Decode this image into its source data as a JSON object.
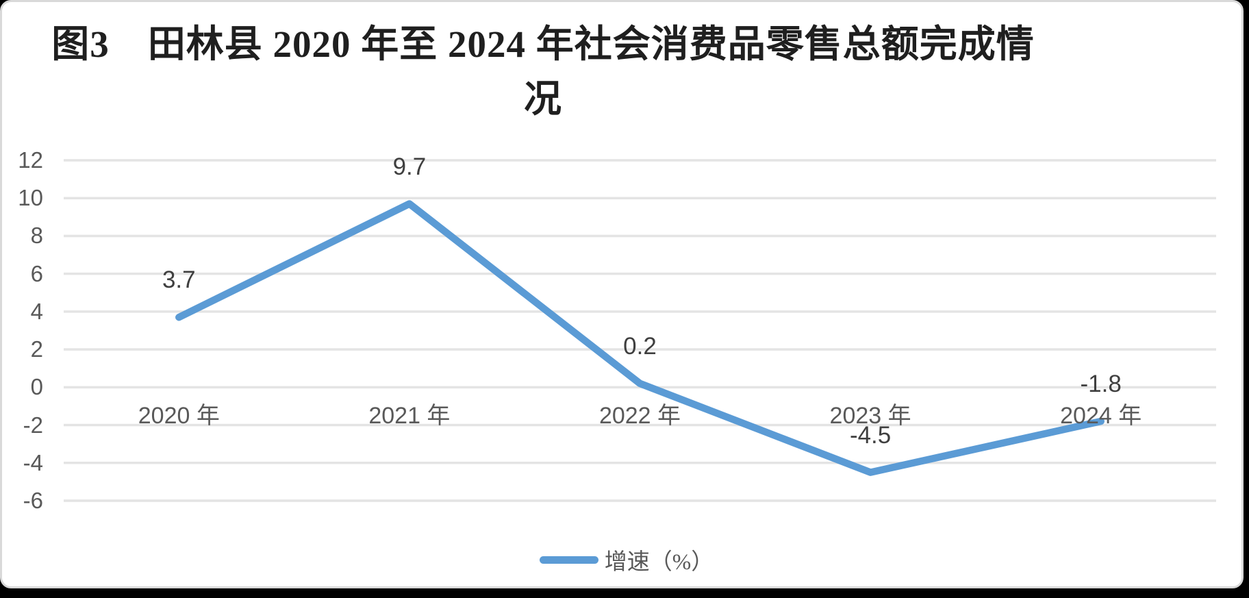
{
  "title": {
    "line1": "图3　田林县 2020 年至 2024 年社会消费品零售总额完成情",
    "line2": "况"
  },
  "legend": {
    "label": "增速（%）",
    "position": "bottom"
  },
  "colors": {
    "series_line": "#5B9BD5",
    "gridline": "#e4e4e4",
    "tick_text": "#595959",
    "data_label_text": "#3f3f3f",
    "title_text": "#1f1f1f",
    "frame_border": "#d9d9d9",
    "outside_frame": "#000000",
    "background": "#ffffff"
  },
  "chart_data": {
    "type": "line",
    "title": "图3　田林县 2020 年至 2024 年社会消费品零售总额完成情况",
    "categories": [
      "2020 年",
      "2021 年",
      "2022 年",
      "2023 年",
      "2024 年"
    ],
    "series": [
      {
        "name": "增速（%）",
        "values": [
          3.7,
          9.7,
          0.2,
          -4.5,
          -1.8
        ]
      }
    ],
    "data_labels": [
      "3.7",
      "9.7",
      "0.2",
      "-4.5",
      "-1.8"
    ],
    "xlabel": "",
    "ylabel": "",
    "ylim": [
      -6,
      12
    ],
    "yticks": [
      12,
      10,
      8,
      6,
      4,
      2,
      0,
      -2,
      -4,
      -6
    ],
    "grid": "horizontal-only",
    "legend_position": "bottom-center",
    "data_label_position": "above"
  }
}
